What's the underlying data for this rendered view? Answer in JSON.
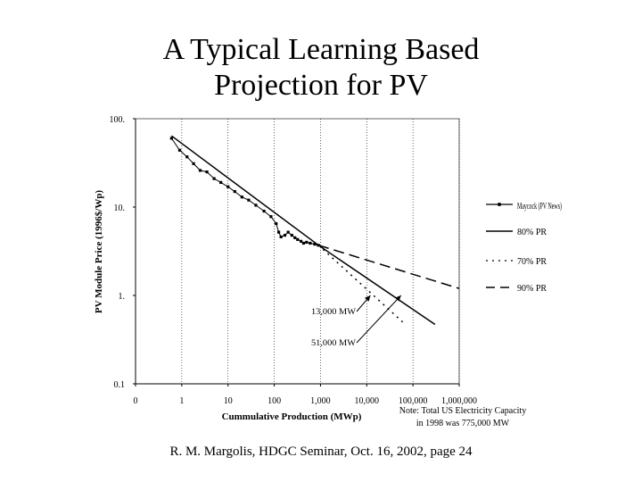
{
  "slide": {
    "title_line1": "A Typical Learning Based",
    "title_line2": "Projection for PV",
    "footer": "R. M. Margolis, HDGC Seminar, Oct. 16, 2002, page 24"
  },
  "chart_data": {
    "type": "line",
    "title": "",
    "xlabel": "Cummulative Production (MWp)",
    "ylabel": "PV Module Price (1996$/Wp)",
    "x_scale": "log",
    "y_scale": "log",
    "xlim": [
      0.1,
      1000000
    ],
    "ylim": [
      0.1,
      100
    ],
    "x_ticks": [
      {
        "value": 0.1,
        "label": "0"
      },
      {
        "value": 1,
        "label": "1"
      },
      {
        "value": 10,
        "label": "10"
      },
      {
        "value": 100,
        "label": "100"
      },
      {
        "value": 1000,
        "label": "1,000"
      },
      {
        "value": 10000,
        "label": "10,000"
      },
      {
        "value": 100000,
        "label": "100,000"
      },
      {
        "value": 1000000,
        "label": "1,000,000"
      }
    ],
    "y_ticks": [
      {
        "value": 100,
        "label": "100."
      },
      {
        "value": 10,
        "label": "10."
      },
      {
        "value": 1,
        "label": "1."
      },
      {
        "value": 0.1,
        "label": "0.1"
      }
    ],
    "grid": "vertical",
    "legend_position": "right",
    "series": [
      {
        "name": "Maycock (PV News)",
        "style": "solid-marker",
        "color": "#000000",
        "points": [
          [
            0.6,
            60
          ],
          [
            0.9,
            44
          ],
          [
            1.3,
            37
          ],
          [
            1.8,
            31
          ],
          [
            2.5,
            26
          ],
          [
            3.5,
            25
          ],
          [
            5,
            21
          ],
          [
            7,
            19
          ],
          [
            10,
            17
          ],
          [
            14,
            15
          ],
          [
            20,
            13
          ],
          [
            28,
            12
          ],
          [
            40,
            10.5
          ],
          [
            60,
            9.0
          ],
          [
            85,
            7.8
          ],
          [
            110,
            6.5
          ],
          [
            125,
            5.2
          ],
          [
            140,
            4.6
          ],
          [
            170,
            4.8
          ],
          [
            200,
            5.2
          ],
          [
            240,
            4.8
          ],
          [
            280,
            4.5
          ],
          [
            320,
            4.3
          ],
          [
            380,
            4.1
          ],
          [
            430,
            3.9
          ],
          [
            500,
            4.0
          ],
          [
            600,
            3.9
          ],
          [
            750,
            3.8
          ],
          [
            900,
            3.7
          ]
        ]
      },
      {
        "name": "80% PR",
        "style": "solid",
        "color": "#000000",
        "points": [
          [
            0.6,
            64
          ],
          [
            900,
            3.7
          ],
          [
            300000,
            0.47
          ]
        ]
      },
      {
        "name": "70% PR",
        "style": "dotted",
        "color": "#000000",
        "points": [
          [
            900,
            3.7
          ],
          [
            60000,
            0.5
          ]
        ]
      },
      {
        "name": "90% PR",
        "style": "dashed",
        "color": "#000000",
        "points": [
          [
            900,
            3.7
          ],
          [
            1000000,
            1.2
          ]
        ]
      }
    ],
    "annotations": [
      {
        "text": "13,000 MW",
        "target": [
          12000,
          1.0
        ]
      },
      {
        "text": "51,000 MW",
        "target": [
          55000,
          1.0
        ]
      }
    ],
    "note_line1": "Note: Total US Electricity Capacity",
    "note_line2": "in 1998 was 775,000 MW"
  }
}
